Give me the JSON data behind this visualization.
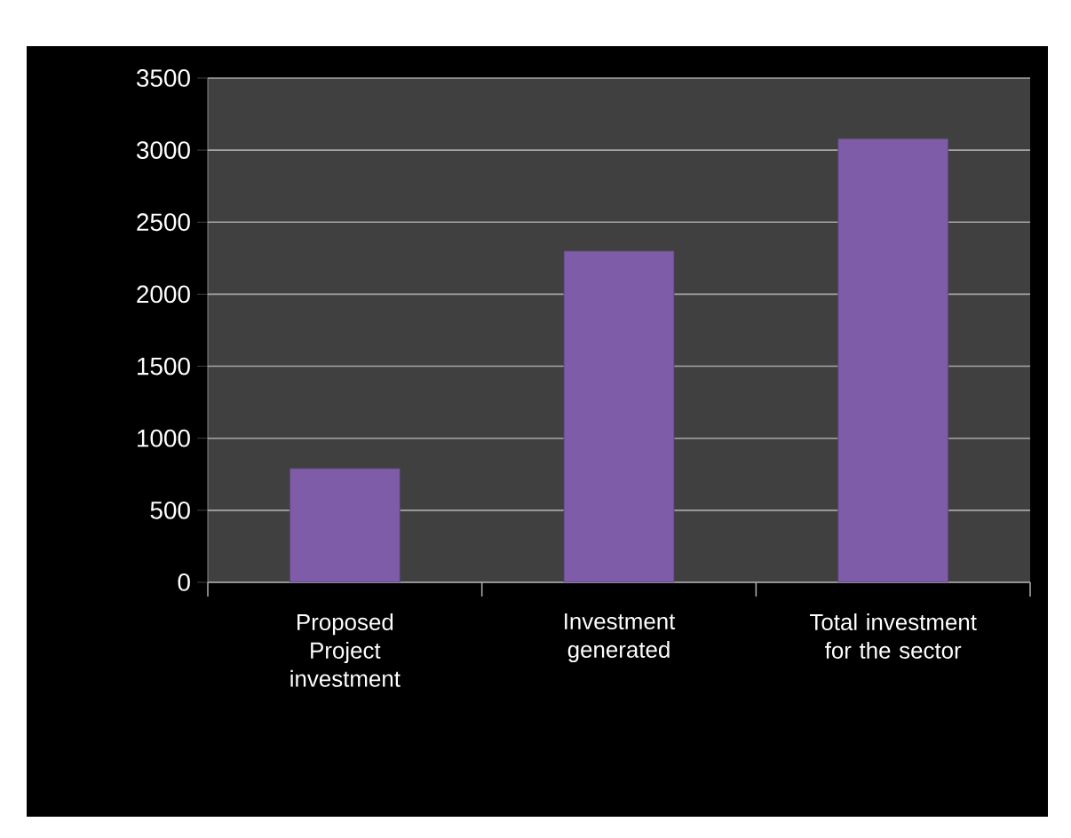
{
  "chart_data": {
    "type": "bar",
    "categories": [
      "Proposed Project investment",
      "Investment generated",
      "Total investment for the sector"
    ],
    "values": [
      790,
      2300,
      3080
    ],
    "color": "#7e5ca8",
    "ylim": [
      0,
      3500
    ],
    "yticks": [
      0,
      500,
      1000,
      1500,
      2000,
      2500,
      3000,
      3500
    ],
    "grid": "y"
  }
}
